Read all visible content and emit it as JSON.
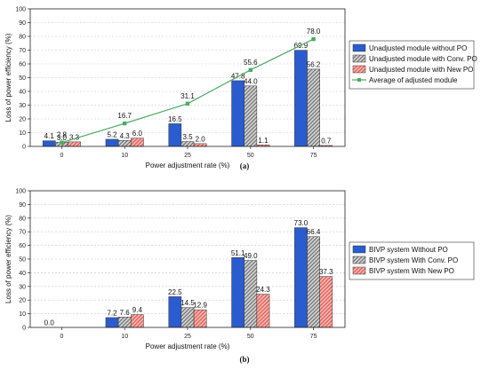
{
  "colors": {
    "blue": "#2a5ccf",
    "gray_hatch": "#5a5a5a",
    "red_hatch": "#d9352b",
    "green": "#4daa63"
  },
  "chart_data": [
    {
      "id": "a",
      "type": "bar",
      "panel_label": "(a)",
      "categories": [
        "0",
        "10",
        "25",
        "50",
        "75"
      ],
      "xlabel": "Power adjustment rate (%)",
      "ylabel": "Loss of power efficiency (%)",
      "ylim": [
        0,
        100
      ],
      "yticks": [
        "0",
        "10",
        "20",
        "30",
        "40",
        "50",
        "60",
        "70",
        "80",
        "90",
        "100"
      ],
      "grid": true,
      "legend_position": "right",
      "series": [
        {
          "name": "Unadjusted module without PO",
          "kind": "bar",
          "color": "blue",
          "values": [
            4.1,
            5.2,
            16.5,
            47.8,
            69.9
          ],
          "labels": [
            "4.1",
            "5.2",
            "16.5",
            "47.8",
            "69.9"
          ]
        },
        {
          "name": "Unadjusted module with Conv. PO",
          "kind": "bar",
          "color": "gray_hatch",
          "values": [
            3.0,
            4.3,
            3.5,
            44.0,
            56.2
          ],
          "labels": [
            "3.0",
            "4.3",
            "3.5",
            "44.0",
            "56.2"
          ]
        },
        {
          "name": "Unadjusted module  with New PO",
          "kind": "bar",
          "color": "red_hatch",
          "values": [
            3.3,
            6.0,
            2.0,
            1.1,
            0.7
          ],
          "labels": [
            "3.3",
            "6.0",
            "2.0",
            "1.1",
            "0.7"
          ]
        },
        {
          "name": "Average of adjusted module",
          "kind": "line",
          "color": "green",
          "values": [
            2.8,
            16.7,
            31.1,
            55.6,
            78.0
          ],
          "labels": [
            "2.8",
            "16.7",
            "31.1",
            "55.6",
            "78.0"
          ]
        }
      ]
    },
    {
      "id": "b",
      "type": "bar",
      "panel_label": "(b)",
      "categories": [
        "0",
        "10",
        "25",
        "50",
        "75"
      ],
      "xlabel": "Power adjustment rate (%)",
      "ylabel": "Loss of power efficiency (%)",
      "ylim": [
        0,
        100
      ],
      "yticks": [
        "0",
        "10",
        "20",
        "30",
        "40",
        "50",
        "60",
        "70",
        "80",
        "90",
        "100"
      ],
      "grid": true,
      "legend_position": "right",
      "series": [
        {
          "name": "BIVP system Without PO",
          "kind": "bar",
          "color": "blue",
          "values": [
            0.0,
            7.2,
            22.5,
            51.1,
            73.0
          ],
          "labels": [
            "0.0",
            "7.2",
            "22.5",
            "51.1",
            "73.0"
          ]
        },
        {
          "name": "BIVP system With Conv. PO",
          "kind": "bar",
          "color": "gray_hatch",
          "values": [
            0.0,
            7.6,
            14.5,
            49.0,
            66.4
          ],
          "labels": [
            "",
            "7.6",
            "14.5",
            "49.0",
            "66.4"
          ]
        },
        {
          "name": "BIVP system With New PO",
          "kind": "bar",
          "color": "red_hatch",
          "values": [
            0.0,
            9.4,
            12.9,
            24.3,
            37.3
          ],
          "labels": [
            "",
            "9.4",
            "12.9",
            "24.3",
            "37.3"
          ]
        }
      ]
    }
  ]
}
